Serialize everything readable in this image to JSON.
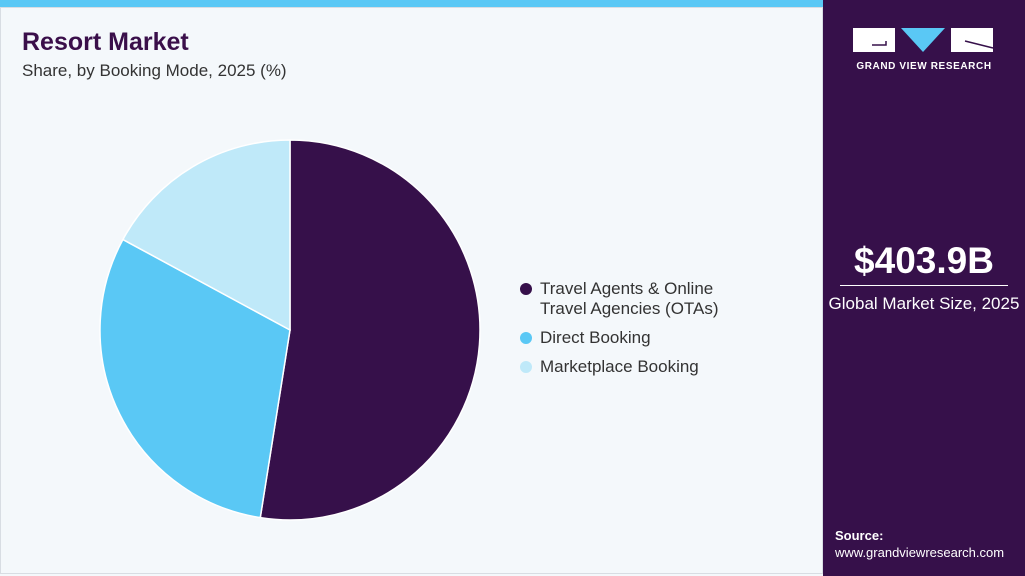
{
  "header": {
    "title": "Resort Market",
    "subtitle": "Share, by Booking Mode, 2025 (%)"
  },
  "chart_data": {
    "type": "pie",
    "title": "Resort Market",
    "subtitle": "Share, by Booking Mode, 2025 (%)",
    "categories": [
      "Travel Agents & Online Travel Agencies (OTAs)",
      "Direct Booking",
      "Marketplace Booking"
    ],
    "values": [
      52.5,
      30.4,
      17.1
    ],
    "colors": [
      "#36104a",
      "#5ac8f5",
      "#bfe9f9"
    ],
    "start_angle": "12 o'clock, clockwise",
    "legend_position": "right"
  },
  "legend": [
    {
      "line1": "Travel Agents & Online",
      "line2": "Travel Agencies (OTAs)"
    },
    {
      "line1": "Direct Booking",
      "line2": ""
    },
    {
      "line1": "Marketplace Booking",
      "line2": ""
    }
  ],
  "sidebar": {
    "logo_text": "GRAND VIEW RESEARCH",
    "market_size": "$403.9B",
    "market_size_label": "Global Market Size, 2025",
    "source_label": "Source:",
    "source_url": "www.grandviewresearch.com"
  }
}
